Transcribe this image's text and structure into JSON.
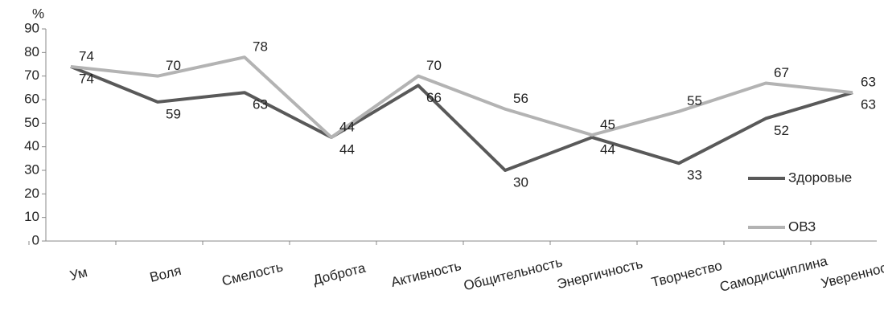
{
  "chart_data": {
    "type": "line",
    "y_unit_label": "%",
    "categories": [
      "Ум",
      "Воля",
      "Смелость",
      "Доброта",
      "Активность",
      "Общительность",
      "Энергичность",
      "Творчество",
      "Самодисциплина",
      "Уверенность"
    ],
    "series": [
      {
        "name": "Здоровые",
        "color": "#595959",
        "values": [
          74,
          59,
          63,
          44,
          66,
          30,
          44,
          33,
          52,
          63
        ]
      },
      {
        "name": "ОВЗ",
        "color": "#b3b3b3",
        "values": [
          74,
          70,
          78,
          44,
          70,
          56,
          45,
          55,
          67,
          63
        ]
      }
    ],
    "ylim": [
      0,
      90
    ],
    "yticks": [
      0,
      10,
      20,
      30,
      40,
      50,
      60,
      70,
      80,
      90
    ],
    "legend": "right"
  }
}
